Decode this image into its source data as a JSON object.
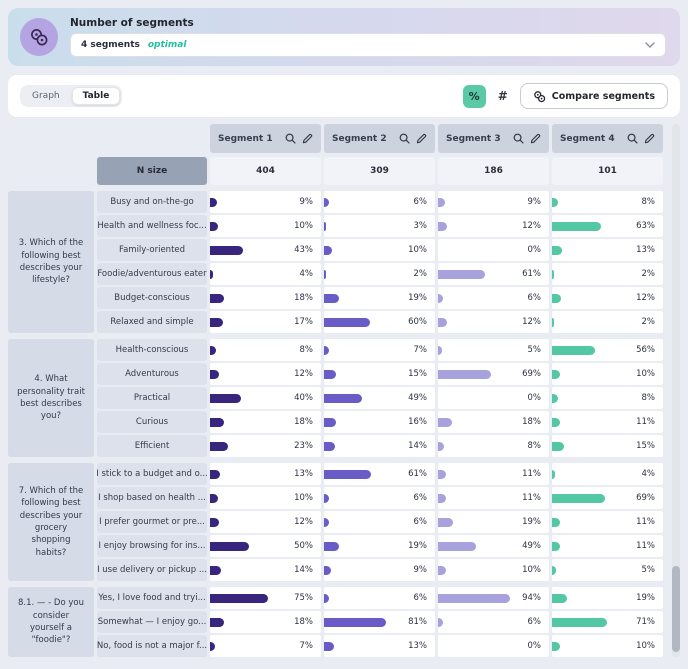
{
  "banner": {
    "title": "Number of segments",
    "dropdown_value": "4 segments",
    "dropdown_badge": "optimal"
  },
  "toolbar": {
    "tabs": [
      {
        "label": "Graph",
        "active": false
      },
      {
        "label": "Table",
        "active": true
      }
    ],
    "percent_label": "%",
    "hash_label": "#",
    "compare_label": "Compare segments"
  },
  "colors": {
    "segment1": "#38267e",
    "segment2": "#6a5cc6",
    "segment3": "#a7a2dc",
    "segment4": "#54c7a4",
    "accent_teal": "#5bc9a6",
    "badge_teal": "#1fbf9f"
  },
  "table": {
    "n_size_label": "N size",
    "segments": [
      {
        "label": "Segment 1",
        "n_size": "404",
        "color": "#38267e"
      },
      {
        "label": "Segment 2",
        "n_size": "309",
        "color": "#6a5cc6"
      },
      {
        "label": "Segment 3",
        "n_size": "186",
        "color": "#a7a2dc"
      },
      {
        "label": "Segment 4",
        "n_size": "101",
        "color": "#54c7a4"
      }
    ],
    "groups": [
      {
        "question": "3. Which of the following best describes your lifestyle?",
        "rows": [
          {
            "label": "Busy and on-the-go",
            "values": [
              9,
              6,
              9,
              8
            ]
          },
          {
            "label": "Health and wellness foc...",
            "values": [
              10,
              3,
              12,
              63
            ]
          },
          {
            "label": "Family-oriented",
            "values": [
              43,
              10,
              0,
              13
            ]
          },
          {
            "label": "Foodie/adventurous eater",
            "values": [
              4,
              2,
              61,
              2
            ]
          },
          {
            "label": "Budget-conscious",
            "values": [
              18,
              19,
              6,
              12
            ]
          },
          {
            "label": "Relaxed and simple",
            "values": [
              17,
              60,
              12,
              2
            ]
          }
        ]
      },
      {
        "question": "4. What personality trait best describes you?",
        "rows": [
          {
            "label": "Health-conscious",
            "values": [
              8,
              7,
              5,
              56
            ]
          },
          {
            "label": "Adventurous",
            "values": [
              12,
              15,
              69,
              10
            ]
          },
          {
            "label": "Practical",
            "values": [
              40,
              49,
              0,
              8
            ]
          },
          {
            "label": "Curious",
            "values": [
              18,
              16,
              18,
              11
            ]
          },
          {
            "label": "Efficient",
            "values": [
              23,
              14,
              8,
              15
            ]
          }
        ]
      },
      {
        "question": "7. Which of the following best describes your grocery shopping habits?",
        "rows": [
          {
            "label": "I stick to a budget and o...",
            "values": [
              13,
              61,
              11,
              4
            ]
          },
          {
            "label": "I shop based on health ...",
            "values": [
              10,
              6,
              11,
              69
            ]
          },
          {
            "label": "I prefer gourmet or pre...",
            "values": [
              12,
              6,
              19,
              11
            ]
          },
          {
            "label": "I enjoy browsing for ins...",
            "values": [
              50,
              19,
              49,
              11
            ]
          },
          {
            "label": "I use delivery or pickup ...",
            "values": [
              14,
              9,
              10,
              5
            ]
          }
        ]
      },
      {
        "question": "8.1. — - Do you consider yourself a \"foodie\"?",
        "rows": [
          {
            "label": "Yes, I love food and tryi...",
            "values": [
              75,
              6,
              94,
              19
            ]
          },
          {
            "label": "Somewhat — I enjoy go...",
            "values": [
              18,
              81,
              6,
              71
            ]
          },
          {
            "label": "No, food is not a major f...",
            "values": [
              7,
              13,
              0,
              10
            ]
          }
        ]
      }
    ]
  }
}
